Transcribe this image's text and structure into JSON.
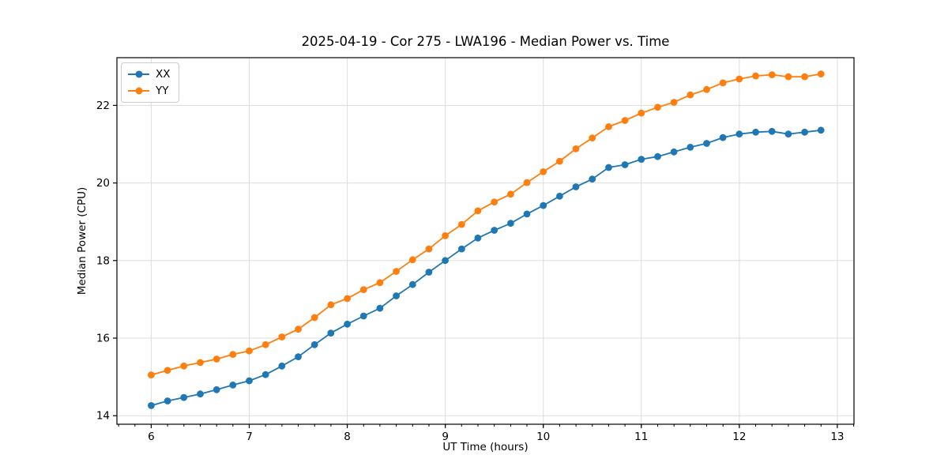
{
  "chart_data": {
    "type": "line",
    "title": "2025-04-19 - Cor 275 - LWA196 - Median Power vs. Time",
    "xlabel": "UT Time (hours)",
    "ylabel": "Median Power (CPU)",
    "xlim": [
      5.65,
      13.17
    ],
    "ylim": [
      13.78,
      23.23
    ],
    "x_ticks": [
      6,
      7,
      8,
      9,
      10,
      11,
      12,
      13
    ],
    "y_ticks": [
      14,
      16,
      18,
      20,
      22
    ],
    "x_minor_tick_step": 0.16667,
    "grid": true,
    "legend_position": "upper left",
    "x": [
      6.0,
      6.167,
      6.333,
      6.5,
      6.667,
      6.833,
      7.0,
      7.167,
      7.333,
      7.5,
      7.667,
      7.833,
      8.0,
      8.167,
      8.333,
      8.5,
      8.667,
      8.833,
      9.0,
      9.167,
      9.333,
      9.5,
      9.667,
      9.833,
      10.0,
      10.167,
      10.333,
      10.5,
      10.667,
      10.833,
      11.0,
      11.167,
      11.333,
      11.5,
      11.667,
      11.833,
      12.0,
      12.167,
      12.333,
      12.5,
      12.667,
      12.833
    ],
    "series": [
      {
        "name": "XX",
        "color": "#1f77b4",
        "values": [
          14.26,
          14.38,
          14.47,
          14.56,
          14.67,
          14.79,
          14.9,
          15.06,
          15.28,
          15.52,
          15.83,
          16.13,
          16.36,
          16.57,
          16.77,
          17.09,
          17.38,
          17.7,
          18.0,
          18.3,
          18.58,
          18.78,
          18.96,
          19.2,
          19.42,
          19.66,
          19.9,
          20.1,
          20.4,
          20.47,
          20.61,
          20.68,
          20.8,
          20.92,
          21.02,
          21.17,
          21.26,
          21.31,
          21.33,
          21.26,
          21.31,
          21.36
        ]
      },
      {
        "name": "YY",
        "color": "#ff7f0e",
        "values": [
          15.05,
          15.17,
          15.28,
          15.37,
          15.46,
          15.58,
          15.67,
          15.83,
          16.03,
          16.23,
          16.53,
          16.86,
          17.02,
          17.25,
          17.43,
          17.72,
          18.02,
          18.3,
          18.64,
          18.93,
          19.28,
          19.51,
          19.71,
          20.01,
          20.29,
          20.56,
          20.88,
          21.16,
          21.45,
          21.61,
          21.8,
          21.95,
          22.08,
          22.27,
          22.41,
          22.58,
          22.68,
          22.76,
          22.79,
          22.74,
          22.74,
          22.81
        ]
      }
    ],
    "colors": {
      "grid": "#dddddd",
      "spine": "#000000",
      "background": "#ffffff",
      "tick": "#000000"
    }
  }
}
